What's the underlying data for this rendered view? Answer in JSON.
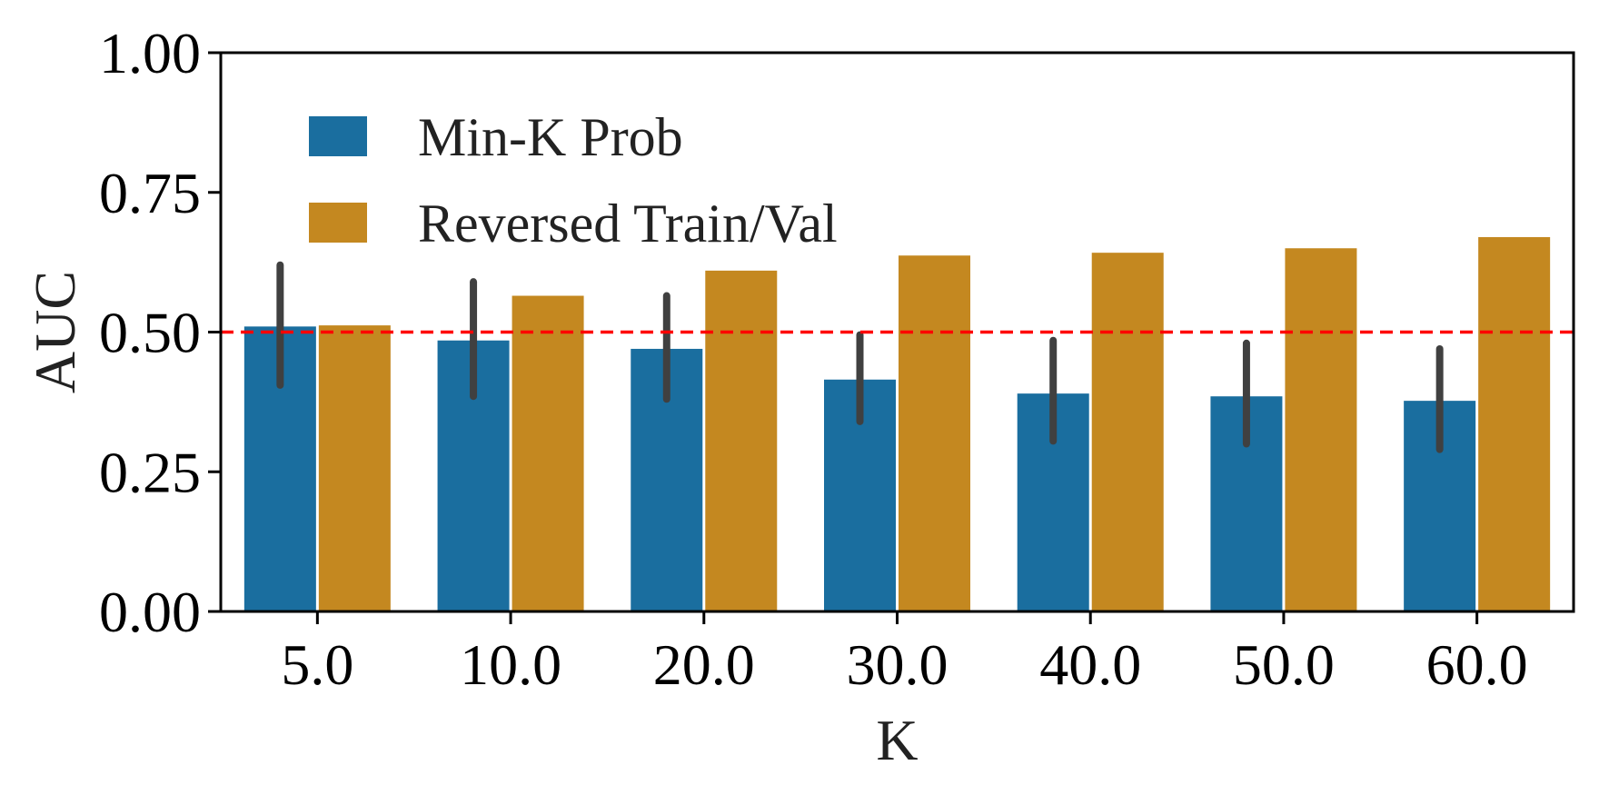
{
  "chart_data": {
    "type": "bar",
    "title": "",
    "xlabel": "K",
    "ylabel": "AUC",
    "ylim": [
      0,
      1
    ],
    "yticks": [
      "0.00",
      "0.25",
      "0.50",
      "0.75",
      "1.00"
    ],
    "categories": [
      "5.0",
      "10.0",
      "20.0",
      "30.0",
      "40.0",
      "50.0",
      "60.0"
    ],
    "series": [
      {
        "name": "Min-K Prob",
        "color": "#1a6e9f",
        "values": [
          0.51,
          0.485,
          0.47,
          0.415,
          0.39,
          0.385,
          0.377
        ],
        "error_low": [
          0.405,
          0.385,
          0.38,
          0.34,
          0.305,
          0.3,
          0.29
        ],
        "error_high": [
          0.62,
          0.59,
          0.565,
          0.495,
          0.485,
          0.48,
          0.47
        ]
      },
      {
        "name": "Reversed Train/Val",
        "color": "#c48820",
        "values": [
          0.512,
          0.565,
          0.61,
          0.637,
          0.642,
          0.65,
          0.67
        ]
      }
    ],
    "reference_line": {
      "y": 0.5,
      "color": "#ff0000",
      "style": "dashed"
    },
    "error_bar_color": "#404040",
    "legend_position": "top-left",
    "grid": false
  }
}
